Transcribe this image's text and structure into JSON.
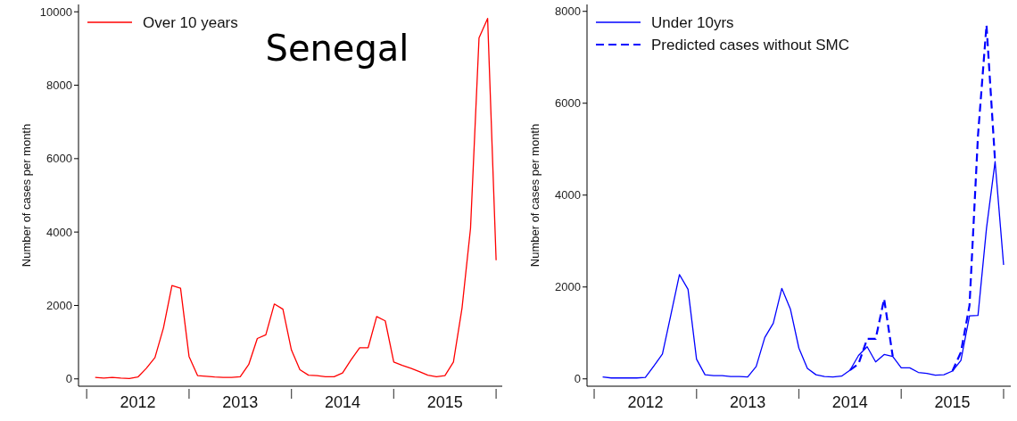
{
  "chart_data": [
    {
      "type": "line",
      "ylabel": "Number of cases per month",
      "annotations": [
        "Senegal"
      ],
      "legend": "top left",
      "grid": false,
      "line_style": "solid",
      "marker": "none",
      "x": [
        2012.083,
        2012.167,
        2012.25,
        2012.333,
        2012.417,
        2012.5,
        2012.583,
        2012.667,
        2012.75,
        2012.833,
        2012.917,
        2013,
        2013.083,
        2013.167,
        2013.25,
        2013.333,
        2013.417,
        2013.5,
        2013.583,
        2013.667,
        2013.75,
        2013.833,
        2013.917,
        2014,
        2014.083,
        2014.167,
        2014.25,
        2014.333,
        2014.417,
        2014.5,
        2014.583,
        2014.667,
        2014.75,
        2014.833,
        2014.917,
        2015,
        2015.083,
        2015.167,
        2015.25,
        2015.333,
        2015.417,
        2015.5,
        2015.583,
        2015.667,
        2015.75,
        2015.833,
        2015.917,
        2016
      ],
      "xlim": [
        2011.92,
        2016.06
      ],
      "xticks": [
        {
          "value": 2012,
          "label": null
        },
        {
          "value": 2012.5,
          "label": "2012"
        },
        {
          "value": 2013,
          "label": null
        },
        {
          "value": 2013.5,
          "label": "2013"
        },
        {
          "value": 2014,
          "label": null
        },
        {
          "value": 2014.5,
          "label": "2014"
        },
        {
          "value": 2015,
          "label": null
        },
        {
          "value": 2015.5,
          "label": "2015"
        },
        {
          "value": 2016,
          "label": null
        }
      ],
      "ylim": [
        -200,
        10200
      ],
      "yticks": [
        0,
        2000,
        4000,
        6000,
        8000,
        10000
      ],
      "series": [
        {
          "name": "Over 10 years",
          "color": "#ff0000",
          "values": [
            40,
            20,
            40,
            20,
            10,
            50,
            290,
            580,
            1390,
            2540,
            2470,
            610,
            90,
            70,
            50,
            40,
            40,
            60,
            390,
            1100,
            1200,
            2040,
            1900,
            790,
            250,
            100,
            90,
            60,
            60,
            160,
            520,
            850,
            850,
            1700,
            1580,
            460,
            370,
            290,
            200,
            100,
            60,
            90,
            460,
            1930,
            4100,
            9290,
            9820,
            3230
          ]
        }
      ]
    },
    {
      "type": "line",
      "ylabel": "Number of cases per month",
      "legend": "top left",
      "grid": false,
      "marker": "none",
      "x": [
        2012.083,
        2012.167,
        2012.25,
        2012.333,
        2012.417,
        2012.5,
        2012.583,
        2012.667,
        2012.75,
        2012.833,
        2012.917,
        2013,
        2013.083,
        2013.167,
        2013.25,
        2013.333,
        2013.417,
        2013.5,
        2013.583,
        2013.667,
        2013.75,
        2013.833,
        2013.917,
        2014,
        2014.083,
        2014.167,
        2014.25,
        2014.333,
        2014.417,
        2014.5,
        2014.583,
        2014.667,
        2014.75,
        2014.833,
        2014.917,
        2015,
        2015.083,
        2015.167,
        2015.25,
        2015.333,
        2015.417,
        2015.5,
        2015.583,
        2015.667,
        2015.75,
        2015.833,
        2015.917,
        2016
      ],
      "xlim": [
        2011.93,
        2016.07
      ],
      "xticks": [
        {
          "value": 2012,
          "label": null
        },
        {
          "value": 2012.5,
          "label": "2012"
        },
        {
          "value": 2013,
          "label": null
        },
        {
          "value": 2013.5,
          "label": "2013"
        },
        {
          "value": 2014,
          "label": null
        },
        {
          "value": 2014.5,
          "label": "2014"
        },
        {
          "value": 2015,
          "label": null
        },
        {
          "value": 2015.5,
          "label": "2015"
        },
        {
          "value": 2016,
          "label": null
        }
      ],
      "ylim": [
        -160,
        8150
      ],
      "yticks": [
        0,
        2000,
        4000,
        6000,
        8000
      ],
      "series": [
        {
          "name": "Under 10yrs",
          "color": "#0000ff",
          "line_style": "solid",
          "values": [
            40,
            20,
            20,
            20,
            20,
            30,
            280,
            540,
            1400,
            2270,
            1950,
            430,
            90,
            70,
            70,
            50,
            50,
            40,
            270,
            900,
            1210,
            1970,
            1520,
            670,
            230,
            90,
            50,
            40,
            60,
            190,
            510,
            700,
            370,
            530,
            490,
            240,
            240,
            140,
            120,
            80,
            90,
            170,
            400,
            1370,
            1380,
            3280,
            4730,
            2480
          ]
        },
        {
          "name": "Predicted cases without SMC",
          "color": "#0000ff",
          "line_style": "dashed",
          "values": [
            null,
            null,
            null,
            null,
            null,
            null,
            null,
            null,
            null,
            null,
            null,
            null,
            null,
            null,
            null,
            null,
            null,
            null,
            null,
            null,
            null,
            null,
            null,
            null,
            null,
            null,
            null,
            null,
            null,
            190,
            330,
            870,
            870,
            1740,
            490,
            null,
            null,
            null,
            null,
            null,
            null,
            170,
            580,
            1600,
            5300,
            7700,
            4730,
            null
          ]
        }
      ]
    }
  ]
}
